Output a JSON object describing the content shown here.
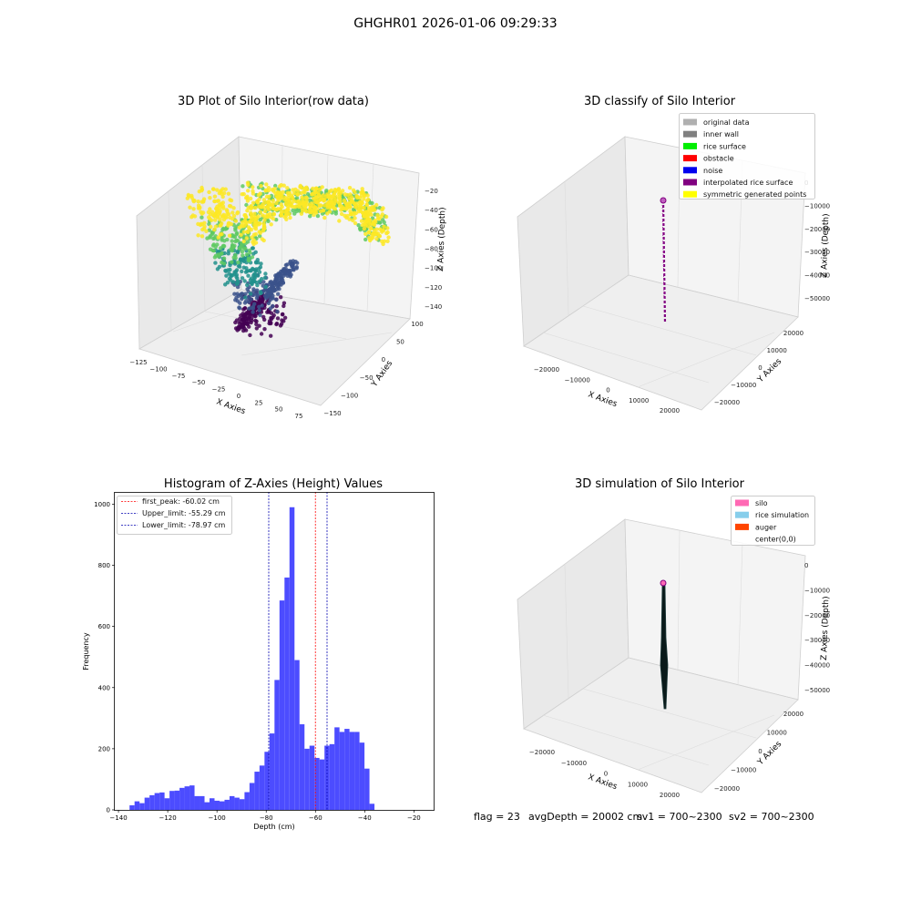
{
  "suptitle": "GHGHR01 2026-01-06 09:29:33",
  "colors": {
    "hist_bar": "#4c4cff",
    "peak_line": "#ff0000",
    "limit_line": "#0000b0",
    "pane": "#f2f2f2",
    "viridis": [
      "#440154",
      "#3b528b",
      "#21918c",
      "#5ec962",
      "#fde725"
    ]
  },
  "panels": {
    "raw": {
      "title": "3D Plot of Silo Interior(row data)",
      "xlabel": "X Axies",
      "ylabel": "Y Axies",
      "zlabel": "Z Axies (Depth)",
      "xticks": [
        "−125",
        "−100",
        "−75",
        "−50",
        "−25",
        "0",
        "25",
        "50",
        "75"
      ],
      "yticks": [
        "100",
        "50",
        "0",
        "−50",
        "−100",
        "−150"
      ],
      "zticks": [
        "−20",
        "−40",
        "−60",
        "−80",
        "−100",
        "−120",
        "−140"
      ]
    },
    "classify": {
      "title": "3D classify of Silo Interior",
      "xlabel": "X Axies",
      "ylabel": "Y Axies",
      "zlabel": "Z Axies (Depth)",
      "xticks": [
        "−20000",
        "−10000",
        "0",
        "10000",
        "20000"
      ],
      "yticks": [
        "20000",
        "10000",
        "0",
        "−10000",
        "−20000"
      ],
      "zticks": [
        "0",
        "−10000",
        "−20000",
        "−30000",
        "−40000",
        "−50000"
      ],
      "legend": [
        {
          "label": "original data",
          "color": "#b0b0b0"
        },
        {
          "label": "inner wall",
          "color": "#808080"
        },
        {
          "label": "rice surface",
          "color": "#00ee00"
        },
        {
          "label": "obstacle",
          "color": "#ff0000"
        },
        {
          "label": "noise",
          "color": "#0000ee"
        },
        {
          "label": "interpolated rice surface",
          "color": "#800080"
        },
        {
          "label": "symmetric generated points",
          "color": "#ffff00"
        }
      ]
    },
    "simulation": {
      "title": "3D simulation of Silo Interior",
      "xlabel": "X Axies",
      "ylabel": "Y Axies",
      "zlabel": "Z Axies (Depth)",
      "xticks": [
        "−20000",
        "−10000",
        "0",
        "10000",
        "20000"
      ],
      "yticks": [
        "20000",
        "10000",
        "0",
        "−10000",
        "−20000"
      ],
      "zticks": [
        "0",
        "−10000",
        "−20000",
        "−30000",
        "−40000",
        "−50000"
      ],
      "legend": [
        {
          "label": "silo",
          "color": "#ff69b4"
        },
        {
          "label": "rice simulation",
          "color": "#87ceeb"
        },
        {
          "label": "auger",
          "color": "#ff4500"
        },
        {
          "label": "center(0,0)",
          "color": ""
        }
      ]
    }
  },
  "status": {
    "flag": "flag = 23",
    "avg": "avgDepth = 20002 cm",
    "sv1": "sv1 = 700~2300",
    "sv2": "sv2 = 700~2300"
  },
  "chart_data": {
    "type": "bar",
    "title": "Histogram of Z-Axies (Height) Values",
    "xlabel": "Depth (cm)",
    "ylabel": "Frequency",
    "xlim": [
      -141.5,
      -12
    ],
    "ylim": [
      0,
      1040
    ],
    "xticks": [
      -140,
      -120,
      -100,
      -80,
      -60,
      -40,
      -20
    ],
    "yticks": [
      0,
      200,
      400,
      600,
      800,
      1000
    ],
    "bins": {
      "start": -135.5,
      "width": 2.03
    },
    "values": [
      15,
      28,
      22,
      40,
      48,
      55,
      57,
      38,
      62,
      63,
      72,
      77,
      80,
      45,
      45,
      25,
      38,
      30,
      28,
      33,
      45,
      40,
      35,
      58,
      88,
      125,
      145,
      190,
      250,
      425,
      685,
      760,
      990,
      490,
      280,
      200,
      210,
      170,
      165,
      210,
      215,
      270,
      255,
      265,
      255,
      255,
      220,
      135,
      20
    ],
    "vlines": [
      {
        "label": "first_peak: -60.02 cm",
        "value": -60.02,
        "color": "#ff0000"
      },
      {
        "label": "Upper_limit: -55.29 cm",
        "value": -55.29,
        "color": "#0000b0"
      },
      {
        "label": "Lower_limit: -78.97 cm",
        "value": -78.97,
        "color": "#0000b0"
      }
    ],
    "grid": false,
    "legend_position": "top-left"
  }
}
